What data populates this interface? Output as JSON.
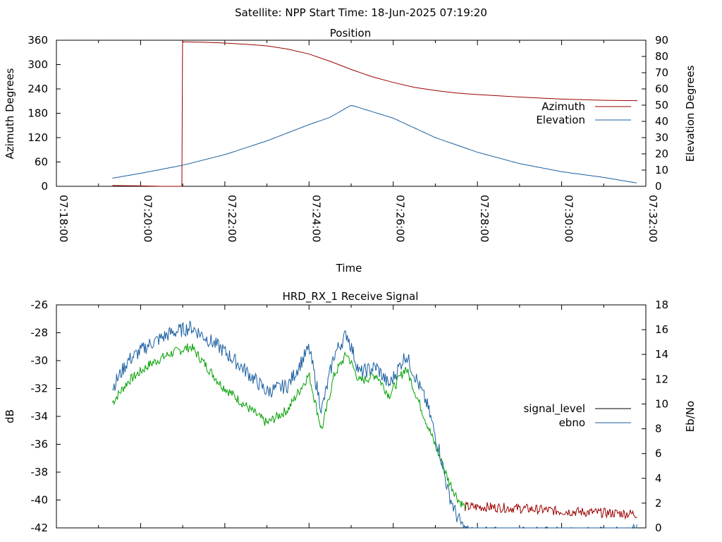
{
  "suptitle": "Satellite: NPP    Start Time: 18-Jun-2025 07:19:20",
  "chart_data": [
    {
      "type": "line",
      "title": "Position",
      "xlabel": "Time",
      "ylabel": "Azimuth Degrees",
      "y2label": "Elevation Degrees",
      "x_ticks": [
        "07:18:00",
        "07:20:00",
        "07:22:00",
        "07:24:00",
        "07:26:00",
        "07:28:00",
        "07:30:00",
        "07:32:00"
      ],
      "xlim_min": [
        0,
        14
      ],
      "ylim": [
        0,
        360
      ],
      "y_ticks": [
        0,
        60,
        120,
        180,
        240,
        300,
        360
      ],
      "y2lim": [
        0,
        90
      ],
      "y2_ticks": [
        0,
        10,
        20,
        30,
        40,
        50,
        60,
        70,
        80,
        90
      ],
      "legend_position": "right",
      "grid": false,
      "series": [
        {
          "name": "Azimuth",
          "axis": "left",
          "color": "#9a0000",
          "x": [
            1.33,
            2,
            2.5,
            3,
            3.5,
            4,
            4.5,
            5,
            5.5,
            6,
            6.5,
            7,
            7.5,
            8,
            8.5,
            9,
            9.5,
            10,
            11,
            12,
            13,
            13.8
          ],
          "values": [
            2,
            1,
            0,
            356,
            355,
            353,
            350,
            346,
            338,
            326,
            308,
            288,
            270,
            256,
            244,
            236,
            230,
            226,
            220,
            215,
            212,
            211
          ],
          "wrap_at_min": 2.98
        },
        {
          "name": "Elevation",
          "axis": "right",
          "color": "#1a5fa0",
          "x": [
            1.33,
            2,
            3,
            4,
            5,
            5.5,
            6,
            6.5,
            7,
            8,
            9,
            10,
            11,
            12,
            13,
            13.8
          ],
          "values": [
            5,
            8,
            13,
            19.5,
            28,
            33,
            38,
            42.5,
            50,
            42,
            30,
            21,
            14,
            9,
            5.5,
            2
          ]
        }
      ]
    },
    {
      "type": "line",
      "title": "HRD_RX_1 Receive Signal",
      "xlabel": "",
      "ylabel": "dB",
      "y2label": "Eb/No",
      "x_ticks": [],
      "ylim": [
        -42,
        -26
      ],
      "y_ticks": [
        -42,
        -40,
        -38,
        -36,
        -34,
        -32,
        -30,
        -28,
        -26
      ],
      "y2lim": [
        0,
        18
      ],
      "y2_ticks": [
        0,
        2,
        4,
        6,
        8,
        10,
        12,
        14,
        16,
        18
      ],
      "legend_position": "right",
      "series": [
        {
          "name": "signal_level",
          "axis": "left",
          "color": "#9a0000",
          "style": "noisy",
          "x": [
            1.33,
            1.7,
            2.2,
            2.7,
            3.2,
            3.9,
            4.4,
            5.0,
            5.5,
            6.0,
            6.3,
            6.6,
            6.9,
            7.2,
            7.6,
            7.9,
            8.3,
            8.8,
            9.3,
            9.55,
            9.7,
            10.2,
            11,
            12,
            12.8,
            13.8
          ],
          "values": [
            -33.0,
            -31.5,
            -30.3,
            -29.5,
            -29.0,
            -31.7,
            -33.0,
            -34.5,
            -33.5,
            -31.0,
            -35.0,
            -31.0,
            -29.5,
            -31.5,
            -31.0,
            -32.5,
            -30.5,
            -34.5,
            -38.5,
            -40.0,
            -40.5,
            -40.5,
            -40.6,
            -40.8,
            -40.9,
            -41.0
          ],
          "noise": 0.35
        },
        {
          "name": "ebno",
          "axis": "right",
          "color": "#1a5fa0",
          "style": "noisy",
          "x": [
            1.33,
            1.7,
            2.2,
            2.7,
            3.2,
            3.9,
            4.4,
            5.0,
            5.5,
            6.0,
            6.3,
            6.6,
            6.9,
            7.2,
            7.6,
            7.9,
            8.3,
            8.8,
            9.1,
            9.3,
            9.5,
            9.7,
            9.9,
            10.2,
            12,
            13.0,
            13.8
          ],
          "values": [
            11.3,
            13.5,
            14.8,
            15.7,
            16.2,
            14.5,
            13.0,
            11.0,
            11.5,
            14.5,
            9.5,
            14.0,
            15.7,
            12.5,
            13.0,
            11.5,
            14.0,
            10.0,
            6.2,
            3.0,
            1.0,
            -0.2,
            -0.5,
            -0.5,
            -0.5,
            -0.5,
            -0.3
          ],
          "noise": 0.6
        }
      ]
    }
  ]
}
